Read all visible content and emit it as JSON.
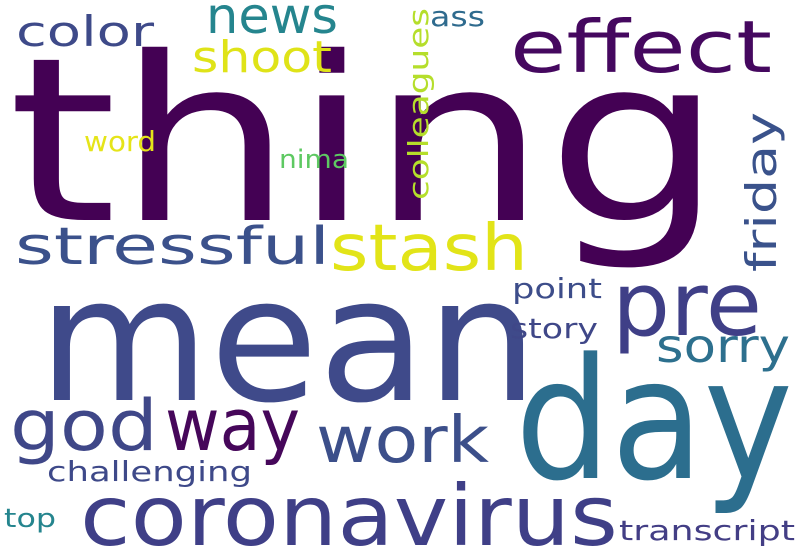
{
  "words": [
    {
      "text": "thing",
      "color": "#440154"
    },
    {
      "text": "mean",
      "color": "#3f4a8a"
    },
    {
      "text": "day",
      "color": "#2c6e8e"
    },
    {
      "text": "coronavirus",
      "color": "#3f3f87"
    },
    {
      "text": "effect",
      "color": "#45085f"
    },
    {
      "text": "news",
      "color": "#25858e"
    },
    {
      "text": "color",
      "color": "#3e4a89"
    },
    {
      "text": "shoot",
      "color": "#dfe318"
    },
    {
      "text": "stash",
      "color": "#e2e418"
    },
    {
      "text": "stressful",
      "color": "#3b518b"
    },
    {
      "text": "pre",
      "color": "#3f3f87"
    },
    {
      "text": "god",
      "color": "#3f4788"
    },
    {
      "text": "way",
      "color": "#46075a"
    },
    {
      "text": "work",
      "color": "#3c4f8a"
    },
    {
      "text": "friday",
      "color": "#3a528b"
    },
    {
      "text": "sorry",
      "color": "#2d708e"
    },
    {
      "text": "point",
      "color": "#3d4d8a"
    },
    {
      "text": "story",
      "color": "#3f4788"
    },
    {
      "text": "colleagues",
      "color": "#b5de2b"
    },
    {
      "text": "ass",
      "color": "#2f6b8e"
    },
    {
      "text": "nima",
      "color": "#5ec962"
    },
    {
      "text": "word",
      "color": "#e5e419"
    },
    {
      "text": "challenging",
      "color": "#3e4989"
    },
    {
      "text": "top",
      "color": "#25858e"
    },
    {
      "text": "transcript",
      "color": "#433e85"
    }
  ]
}
